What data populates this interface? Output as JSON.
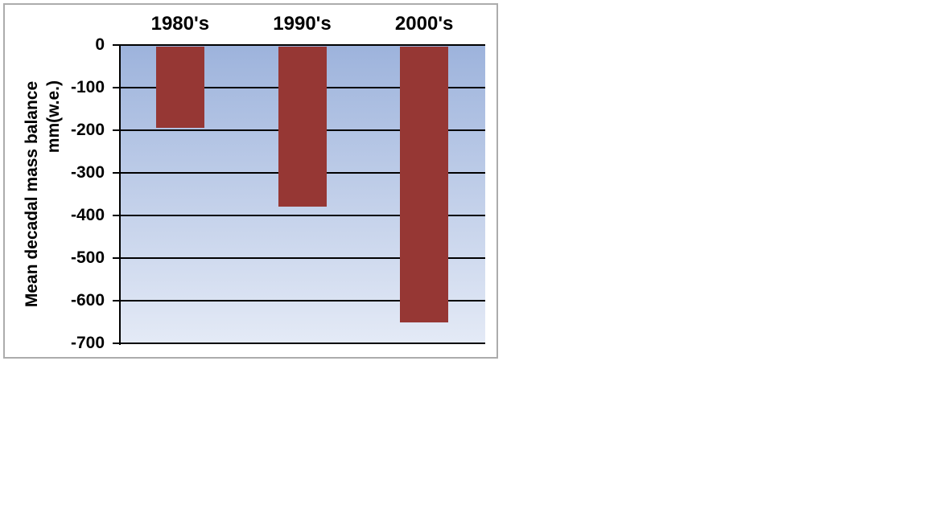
{
  "chart": {
    "frame_border_color": "#ACACAC",
    "background_color": "#FFFFFF"
  },
  "chart_data": {
    "type": "bar",
    "title": "",
    "categories": [
      "1980's",
      "1990's",
      "2000's"
    ],
    "values": [
      -195,
      -380,
      -650
    ],
    "ylabel_line1": "Mean decadal mass balance",
    "ylabel_line2": "mm(w.e.)",
    "xlabel": "",
    "ylim": [
      -700,
      0
    ],
    "yticks": [
      0,
      -100,
      -200,
      -300,
      -400,
      -500,
      -600,
      -700
    ],
    "ytick_labels": [
      "0",
      "-100",
      "-200",
      "-300",
      "-400",
      "-500",
      "-600",
      "-700"
    ],
    "grid": true,
    "legend": false,
    "legend_position": "none",
    "bar_color": "#963734",
    "gridline_color": "#000000",
    "axis_text_color": "#000000",
    "plot_gradient_top": "#9DB3DC",
    "plot_gradient_bottom": "#E4EAF6"
  }
}
